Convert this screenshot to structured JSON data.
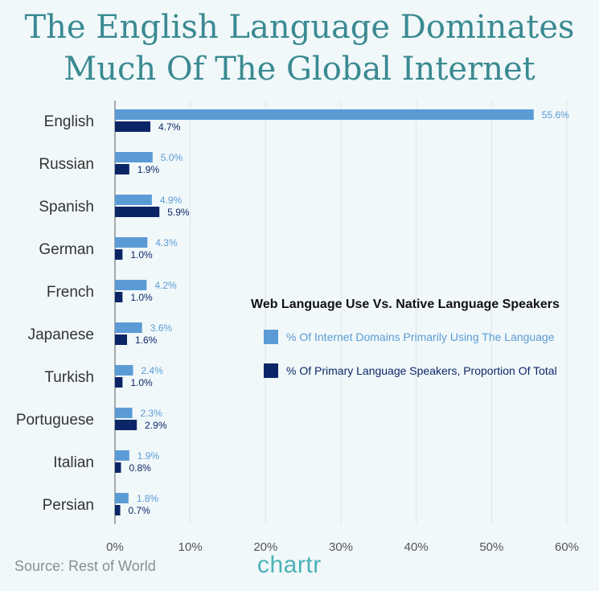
{
  "title": "The English Language Dominates Much Of The Global Internet",
  "source": "Source: Rest of World",
  "brand": "chartr",
  "colors": {
    "domains": "#5b9bd5",
    "speakers": "#0b2667",
    "title": "#3a8a91"
  },
  "legend": {
    "title": "Web Language Use Vs. Native Language Speakers",
    "items": [
      "% Of Internet Domains Primarily Using The Language",
      "% Of Primary Language Speakers, Proportion Of Total"
    ]
  },
  "chart_data": {
    "type": "bar",
    "orientation": "horizontal",
    "categories": [
      "English",
      "Russian",
      "Spanish",
      "German",
      "French",
      "Japanese",
      "Turkish",
      "Portuguese",
      "Italian",
      "Persian"
    ],
    "series": [
      {
        "name": "% Of Internet Domains Primarily Using The Language",
        "values": [
          55.6,
          5.0,
          4.9,
          4.3,
          4.2,
          3.6,
          2.4,
          2.3,
          1.9,
          1.8
        ]
      },
      {
        "name": "% Of Primary Language Speakers, Proportion Of Total",
        "values": [
          4.7,
          1.9,
          5.9,
          1.0,
          1.0,
          1.6,
          1.0,
          2.9,
          0.8,
          0.7
        ]
      }
    ],
    "xlim": [
      0,
      60
    ],
    "xticks": [
      "0%",
      "10%",
      "20%",
      "30%",
      "40%",
      "50%",
      "60%"
    ],
    "grid": true,
    "legend_position": "right"
  }
}
